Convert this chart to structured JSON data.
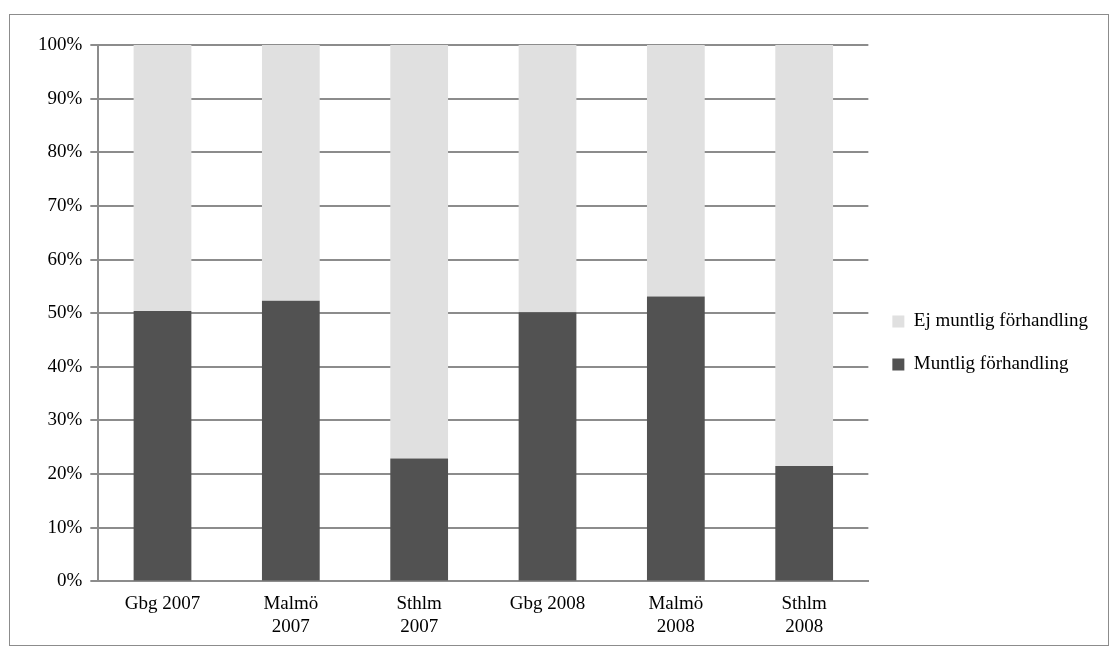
{
  "chart_data": {
    "type": "bar",
    "stacked": true,
    "categories": [
      "Gbg 2007",
      "Malmö 2007",
      "Sthlm 2007",
      "Gbg 2008",
      "Malmö 2008",
      "Sthlm 2008"
    ],
    "series": [
      {
        "name": "Muntlig förhandling",
        "color": "#525252",
        "values": [
          50.4,
          52.3,
          22.9,
          50.2,
          53.1,
          21.5
        ]
      },
      {
        "name": "Ej muntlig förhandling",
        "color": "#e0e0e0",
        "values": [
          49.6,
          47.7,
          77.1,
          49.8,
          46.9,
          78.5
        ]
      }
    ],
    "ylim": [
      0,
      100
    ],
    "yticks": [
      {
        "value": 0,
        "label": "0%"
      },
      {
        "value": 10,
        "label": "10%"
      },
      {
        "value": 20,
        "label": "20%"
      },
      {
        "value": 30,
        "label": "30%"
      },
      {
        "value": 40,
        "label": "40%"
      },
      {
        "value": 50,
        "label": "50%"
      },
      {
        "value": 60,
        "label": "60%"
      },
      {
        "value": 70,
        "label": "70%"
      },
      {
        "value": 80,
        "label": "80%"
      },
      {
        "value": 90,
        "label": "90%"
      },
      {
        "value": 100,
        "label": "100%"
      }
    ],
    "grid": "y",
    "legend": "right"
  }
}
